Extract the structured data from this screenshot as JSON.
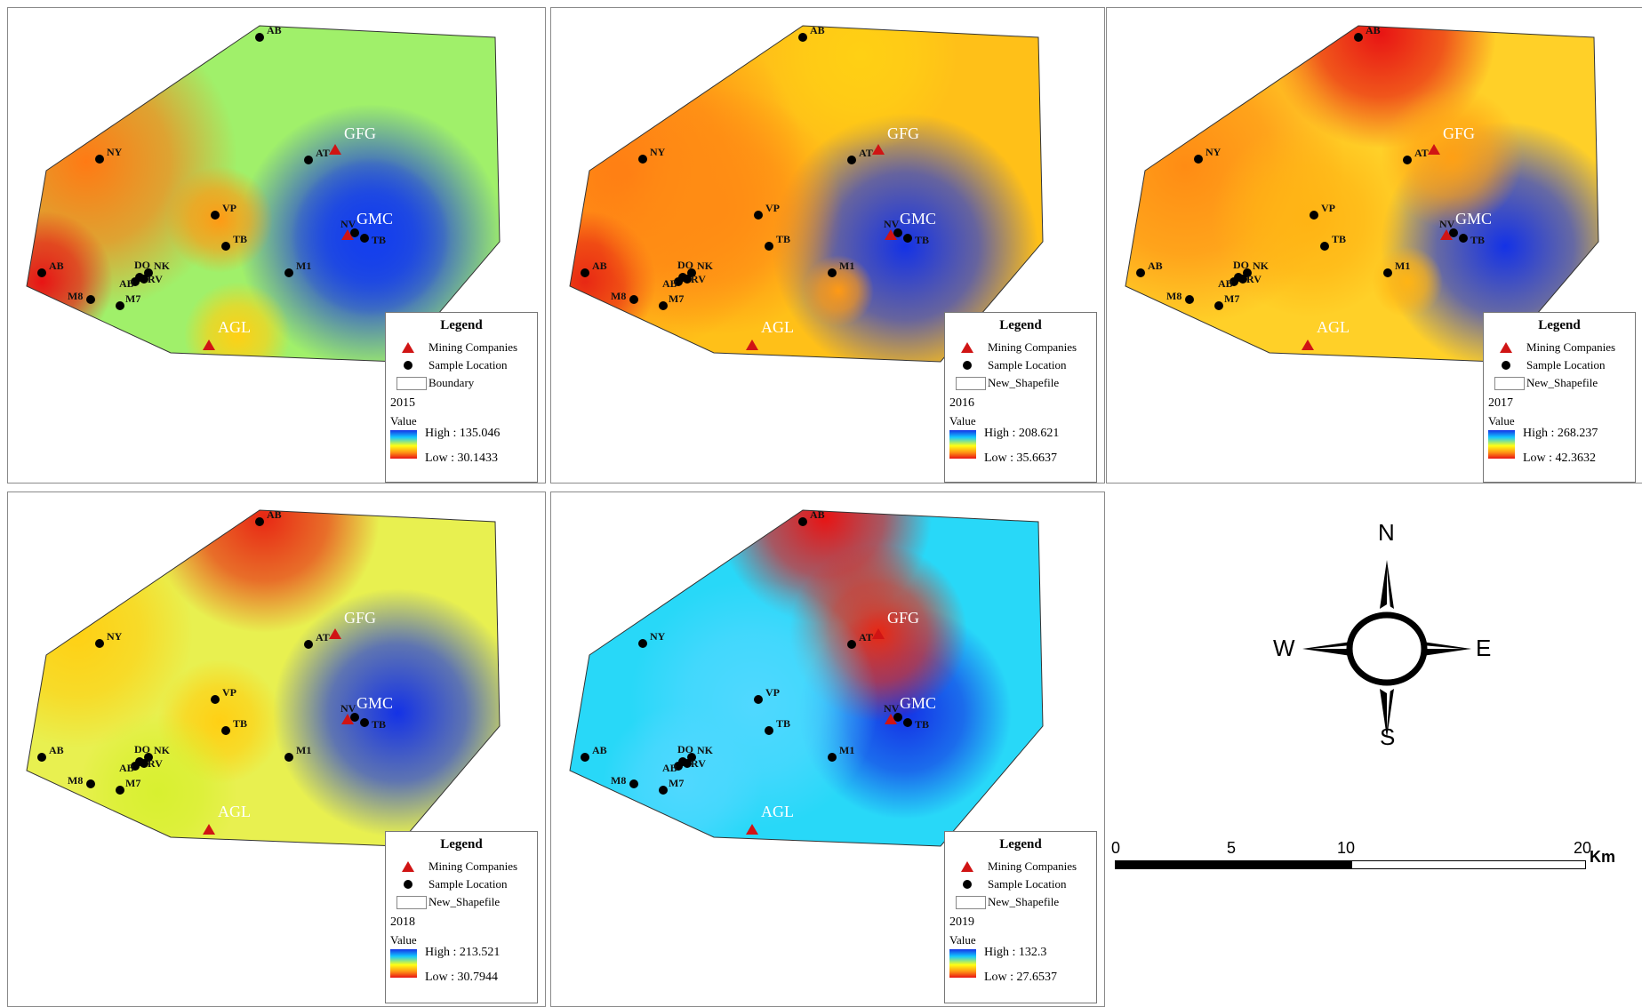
{
  "maps": [
    {
      "year": "2015",
      "legend": {
        "title": "Legend",
        "mining": "Mining Companies",
        "sample": "Sample Location",
        "boundary": "Boundary",
        "value": "Value",
        "high": "High : 135.046",
        "low": "Low : 30.1433"
      },
      "labels": [
        "AB",
        "NY",
        "AT",
        "VP",
        "NV",
        "TB",
        "TB",
        "M1",
        "AB",
        "DO",
        "NK",
        "AB",
        "RV",
        "M8",
        "M7"
      ],
      "companies": [
        "GFG",
        "GMC",
        "AGL"
      ]
    },
    {
      "year": "2016",
      "legend": {
        "title": "Legend",
        "mining": "Mining Companies",
        "sample": "Sample Location",
        "boundary": "New_Shapefile",
        "value": "Value",
        "high": "High : 208.621",
        "low": "Low : 35.6637"
      },
      "labels": [
        "AB",
        "NY",
        "AT",
        "VP",
        "NV",
        "TB",
        "TB",
        "M1",
        "AB",
        "DO",
        "NK",
        "AB",
        "RV",
        "M8",
        "M7"
      ],
      "companies": [
        "GFG",
        "GMC",
        "AGL"
      ]
    },
    {
      "year": "2017",
      "legend": {
        "title": "Legend",
        "mining": "Mining Companies",
        "sample": "Sample Location",
        "boundary": "New_Shapefile",
        "value": "Value",
        "high": "High : 268.237",
        "low": "Low : 42.3632"
      },
      "labels": [
        "AB",
        "NY",
        "AT",
        "VP",
        "NV",
        "TB",
        "TB",
        "M1",
        "AB",
        "DO",
        "NK",
        "AB",
        "RV",
        "M8",
        "M7"
      ],
      "companies": [
        "GFG",
        "GMC",
        "AGL"
      ]
    },
    {
      "year": "2018",
      "legend": {
        "title": "Legend",
        "mining": "Mining Companies",
        "sample": "Sample Location",
        "boundary": "New_Shapefile",
        "value": "Value",
        "high": "High : 213.521",
        "low": "Low : 30.7944"
      },
      "labels": [
        "AB",
        "NY",
        "AT",
        "VP",
        "NV",
        "TB",
        "TB",
        "M1",
        "AB",
        "DO",
        "NK",
        "AB",
        "RV",
        "M8",
        "M7"
      ],
      "companies": [
        "GFG",
        "GMC",
        "AGL"
      ]
    },
    {
      "year": "2019",
      "legend": {
        "title": "Legend",
        "mining": "Mining Companies",
        "sample": "Sample Location",
        "boundary": "New_Shapefile",
        "value": "Value",
        "high": "High : 132.3",
        "low": "Low : 27.6537"
      },
      "labels": [
        "AB",
        "NY",
        "AT",
        "VP",
        "NV",
        "TB",
        "TB",
        "M1",
        "AB",
        "DO",
        "NK",
        "AB",
        "RV",
        "M8",
        "M7"
      ],
      "companies": [
        "GFG",
        "GMC",
        "AGL"
      ]
    }
  ],
  "compass": {
    "n": "N",
    "s": "S",
    "e": "E",
    "w": "W"
  },
  "scale": {
    "ticks": [
      "0",
      "5",
      "10",
      "20"
    ],
    "unit": "Km"
  },
  "colors": {
    "high": "#1432e6",
    "mid_high": "#14c8ff",
    "mid": "#ffff14",
    "mid_low": "#ff9614",
    "low": "#e81414",
    "company_marker": "#d01414"
  }
}
